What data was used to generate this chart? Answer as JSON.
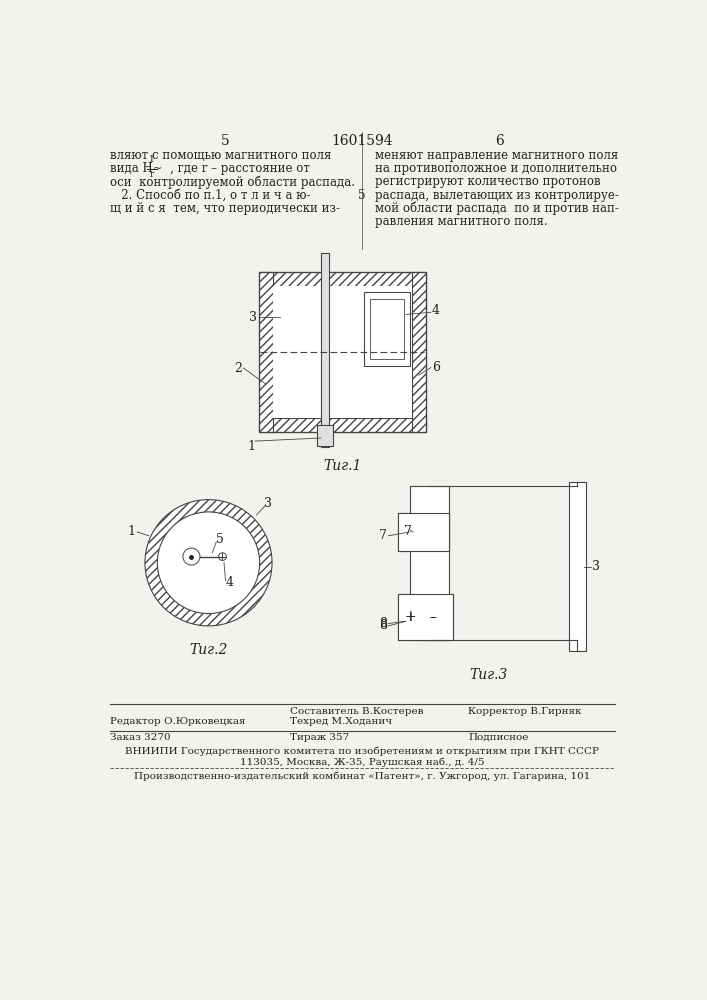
{
  "page_num_left": "5",
  "patent_num": "1601594",
  "page_num_right": "6",
  "left_col_lines": [
    "вляют с помощью магнитного поля",
    "вида H~  , где r – расстояние от",
    "оси  контролируемой области распада.",
    "   2. Способ по п.1, о т л и ч а ю-",
    "щ и й с я  тем, что периодически из-"
  ],
  "right_col_lines": [
    "меняют направление магнитного поля",
    "на противоположное и дополнительно",
    "регистрируют количество протонов",
    "распада, вылетающих из контролируе-",
    "мой области распада  по и против нап-",
    "равления магнитного поля."
  ],
  "line_num_5": "5",
  "fig1_caption": "Τиг.1",
  "fig2_caption": "Τиг.2",
  "fig3_caption": "Τиг.3",
  "footer_editor": "Редактор О.Юрковецкая",
  "footer_sostavitel_label": "Составитель В.Костерев",
  "footer_tehred_label": "Техред М.Ходанич",
  "footer_korrektor": "Корректор В.Гирняк",
  "footer_zakaz": "Заказ 3270",
  "footer_tirazh": "Тираж 357",
  "footer_podpisnoe": "Подписное",
  "footer_vniip1": "ВНИИПИ Государственного комитета по изобретениям и открытиям при ГКНТ СССР",
  "footer_vniip2": "113035, Москва, Ж-35, Раушская наб., д. 4/5",
  "footer_patent": "Производственно-издательский комбинат «Патент», г. Ужгород, ул. Гагарина, 101",
  "bg_color": "#f2f2ee",
  "text_color": "#222222",
  "line_color": "#444444"
}
